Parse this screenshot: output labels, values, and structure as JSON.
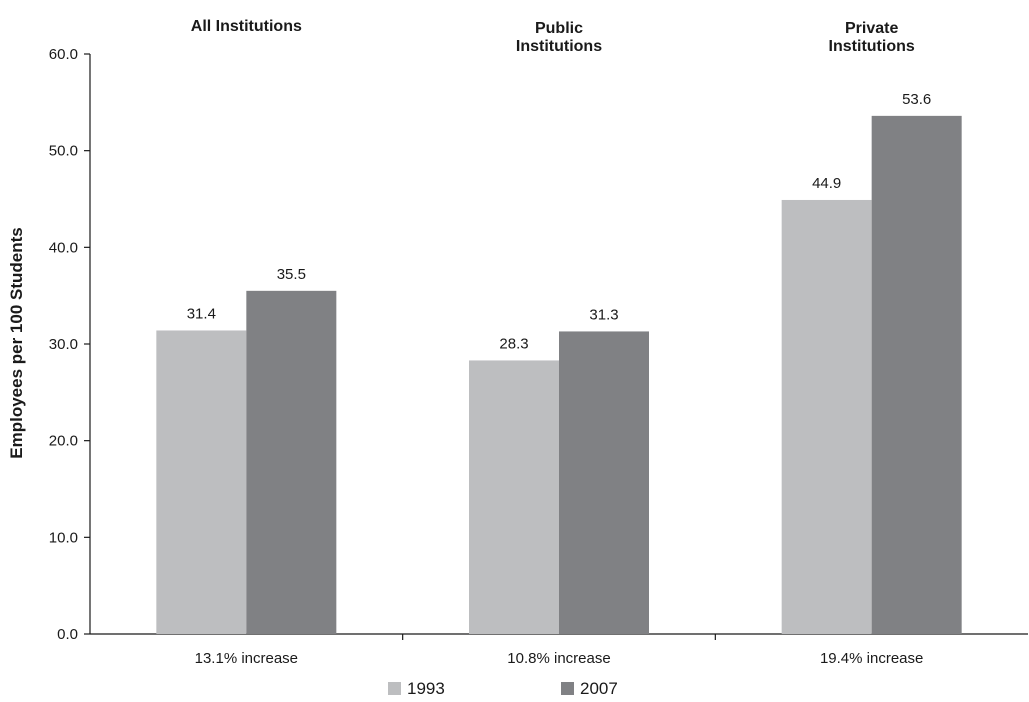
{
  "chart_data": {
    "type": "bar",
    "categories": [
      "13.1% increase",
      "10.8% increase",
      "19.4% increase"
    ],
    "group_titles": [
      [
        "All Institutions"
      ],
      [
        "Public",
        "Institutions"
      ],
      [
        "Private",
        "Institutions"
      ]
    ],
    "series": [
      {
        "name": "1993",
        "color": "#bdbec0",
        "values": [
          31.4,
          28.3,
          44.9
        ],
        "labels": [
          "31.4",
          "28.3",
          "44.9"
        ]
      },
      {
        "name": "2007",
        "color": "#808184",
        "values": [
          35.5,
          31.3,
          53.6
        ],
        "labels": [
          "35.5",
          "31.3",
          "53.6"
        ]
      }
    ],
    "ylabel": "Employees per 100 Students",
    "xlabel": "",
    "ylim": [
      0,
      60
    ],
    "yticks": [
      "0.0",
      "10.0",
      "20.0",
      "30.0",
      "40.0",
      "50.0",
      "60.0"
    ],
    "grid": false,
    "legend_position": "bottom"
  }
}
